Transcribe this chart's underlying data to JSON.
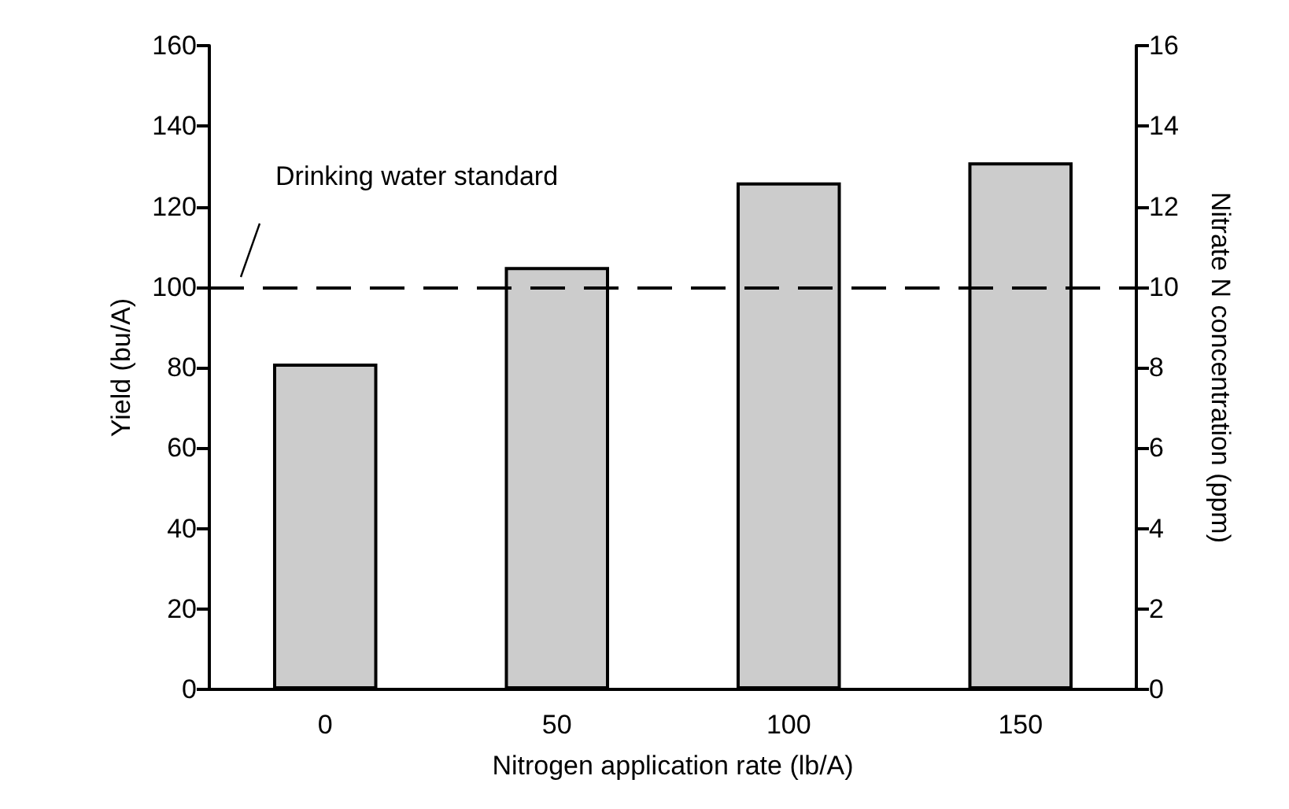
{
  "chart_data": {
    "type": "bar",
    "xlabel": "Nitrogen application rate (lb/A)",
    "ylabel": "Yield (bu/A)",
    "y2label": "Nitrate N concentration (ppm)",
    "categories": [
      "0",
      "50",
      "100",
      "150"
    ],
    "values": [
      81,
      105,
      126,
      131
    ],
    "color": "#cccccc",
    "ylim": [
      0,
      160
    ],
    "yticks": [
      0,
      20,
      40,
      60,
      80,
      100,
      120,
      140,
      160
    ],
    "y2lim": [
      0,
      16
    ],
    "y2ticks": [
      0,
      2,
      4,
      6,
      8,
      10,
      12,
      14,
      16
    ],
    "ref_lines": [
      {
        "axis": "y",
        "value": 100,
        "label": "Drinking water standard",
        "line_style": "dashed",
        "color": "#000000"
      }
    ],
    "grid": false
  }
}
